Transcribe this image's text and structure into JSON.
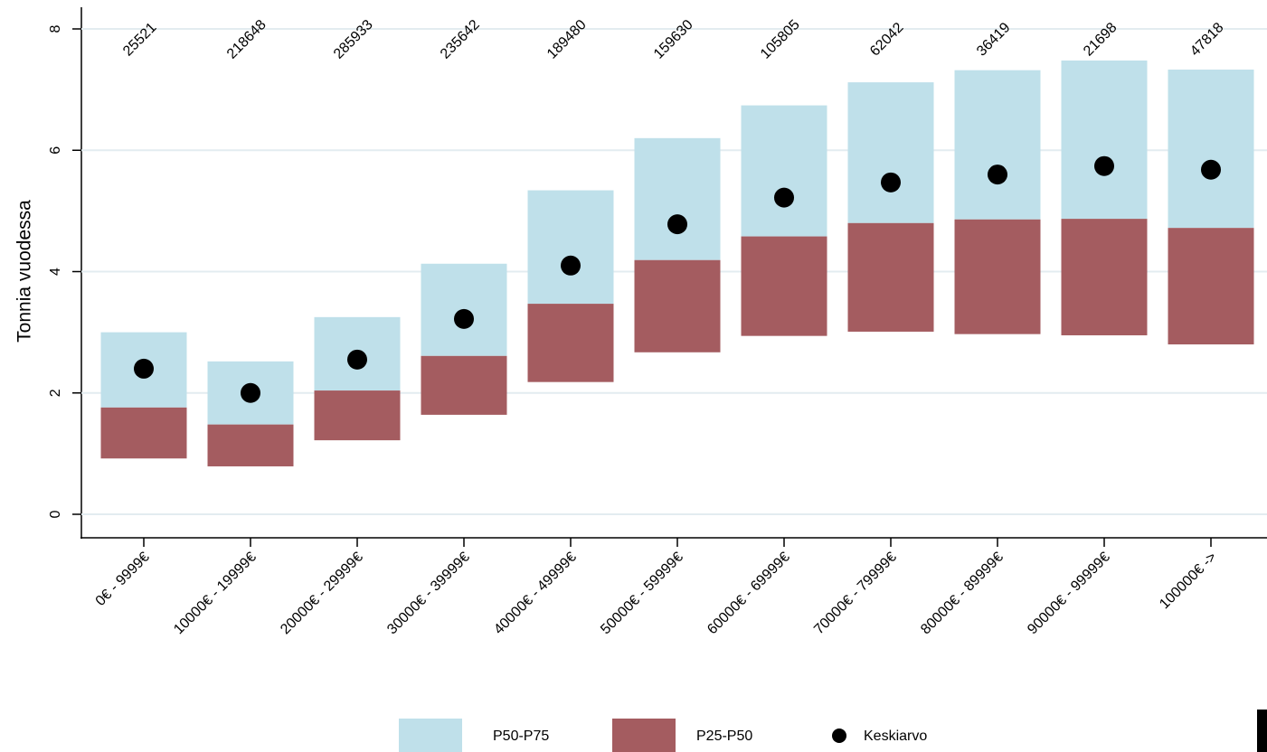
{
  "chart_data": {
    "type": "floating-bar",
    "y_label": "Tonnia vuodessa",
    "categories": [
      "0€ - 9999€",
      "10000€ - 19999€",
      "20000€ - 29999€",
      "30000€ - 39999€",
      "40000€ - 49999€",
      "50000€ - 59999€",
      "60000€ - 69999€",
      "70000€ - 79999€",
      "80000€ - 89999€",
      "90000€ - 99999€",
      "100000€ ->"
    ],
    "counts": [
      25521,
      218648,
      285933,
      235642,
      189480,
      159630,
      105805,
      62042,
      36419,
      21698,
      47818
    ],
    "series": [
      {
        "name": "P50-P75",
        "color": "#bfe0ea",
        "low": [
          1.76,
          1.48,
          2.04,
          2.61,
          3.47,
          4.19,
          4.58,
          4.8,
          4.86,
          4.87,
          4.72
        ],
        "high": [
          3.0,
          2.52,
          3.25,
          4.13,
          5.34,
          6.2,
          6.74,
          7.12,
          7.32,
          7.48,
          7.33
        ]
      },
      {
        "name": "P25-P50",
        "color": "#a45c60",
        "low": [
          0.92,
          0.79,
          1.22,
          1.64,
          2.18,
          2.67,
          2.94,
          3.01,
          2.97,
          2.95,
          2.8
        ],
        "high": [
          1.76,
          1.48,
          2.04,
          2.61,
          3.47,
          4.19,
          4.58,
          4.8,
          4.86,
          4.87,
          4.72
        ]
      },
      {
        "name": "Keskiarvo",
        "color": "#000000",
        "values": [
          2.4,
          2.0,
          2.55,
          3.22,
          4.1,
          4.78,
          5.22,
          5.47,
          5.6,
          5.74,
          5.68
        ]
      }
    ],
    "ylim": [
      0,
      8
    ],
    "yticks": [
      0,
      2,
      4,
      6,
      8
    ],
    "grid": true
  }
}
